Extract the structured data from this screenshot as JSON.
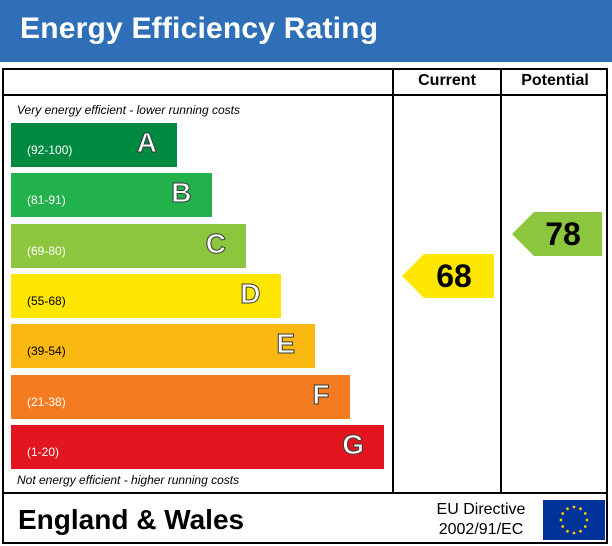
{
  "title": "Energy Efficiency Rating",
  "columns": {
    "current": "Current",
    "potential": "Potential"
  },
  "notes": {
    "top": "Very energy efficient - lower running costs",
    "bottom": "Not energy efficient - higher running costs"
  },
  "footer": {
    "country": "England & Wales",
    "directive_line1": "EU Directive",
    "directive_line2": "2002/91/EC"
  },
  "icons": {
    "eu_flag": "eu-flag-icon"
  },
  "colors": {
    "header": "#2f6fb8",
    "A": "#008a3f",
    "B": "#22b24c",
    "C": "#8cc63f",
    "D": "#ffe600",
    "E": "#fbb813",
    "F": "#f47b20",
    "G": "#e3151f",
    "current_arrow": "#ffe600",
    "potential_arrow": "#8cc63f"
  },
  "chart_data": {
    "type": "bar",
    "title": "Energy Efficiency Rating",
    "categories": [
      "A",
      "B",
      "C",
      "D",
      "E",
      "F",
      "G"
    ],
    "ranges": [
      "(92-100)",
      "(81-91)",
      "(69-80)",
      "(55-68)",
      "(39-54)",
      "(21-38)",
      "(1-20)"
    ],
    "range_min": [
      92,
      81,
      69,
      55,
      39,
      21,
      1
    ],
    "current": {
      "label": "Current",
      "value": 68,
      "band": "D"
    },
    "potential": {
      "label": "Potential",
      "value": 78,
      "band": "C"
    }
  }
}
